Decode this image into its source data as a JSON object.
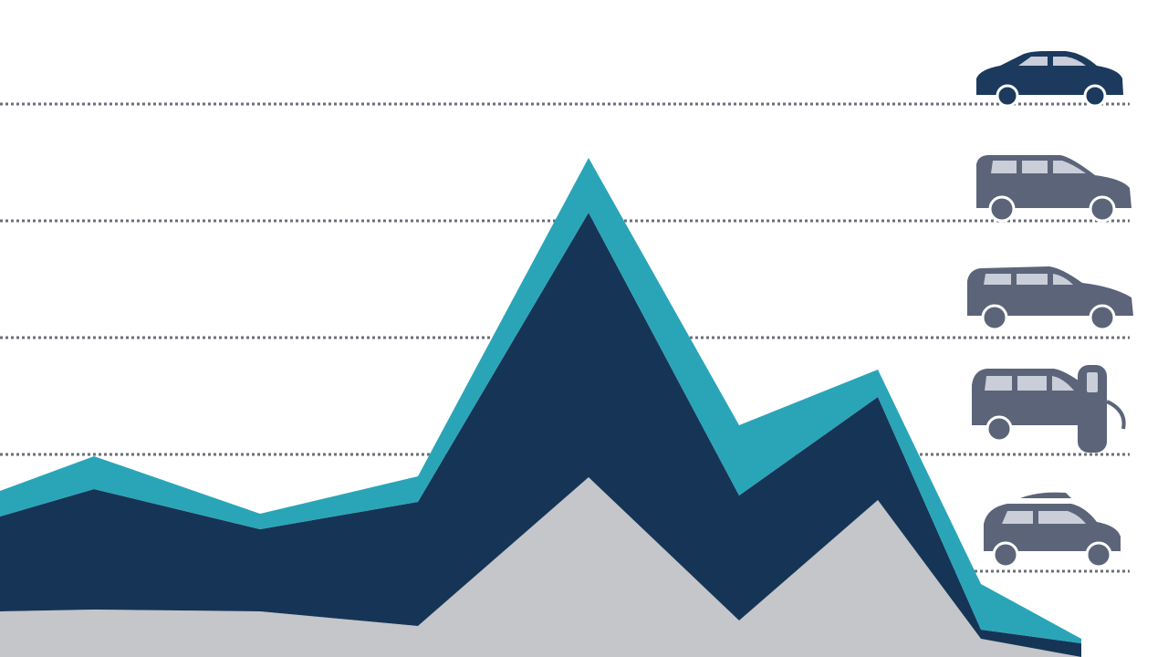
{
  "chart_data": {
    "type": "area",
    "stacked": true,
    "x": [
      0,
      103,
      285,
      458,
      645,
      810,
      962,
      1075,
      1185
    ],
    "xlim": [
      0,
      1280
    ],
    "ylim": [
      0,
      720
    ],
    "yticks": [
      94,
      222,
      350,
      478,
      606
    ],
    "grid": true,
    "series": [
      {
        "color": "#c4c6ca",
        "values": [
          50,
          52,
          50,
          34,
          197,
          40,
          172,
          20,
          0
        ]
      },
      {
        "color": "#163556",
        "values": [
          104,
          132,
          90,
          136,
          290,
          137,
          113,
          10,
          15
        ]
      },
      {
        "color": "#2aa5b8",
        "values": [
          28,
          36,
          17,
          28,
          60,
          77,
          30,
          50,
          5
        ]
      }
    ]
  }
}
